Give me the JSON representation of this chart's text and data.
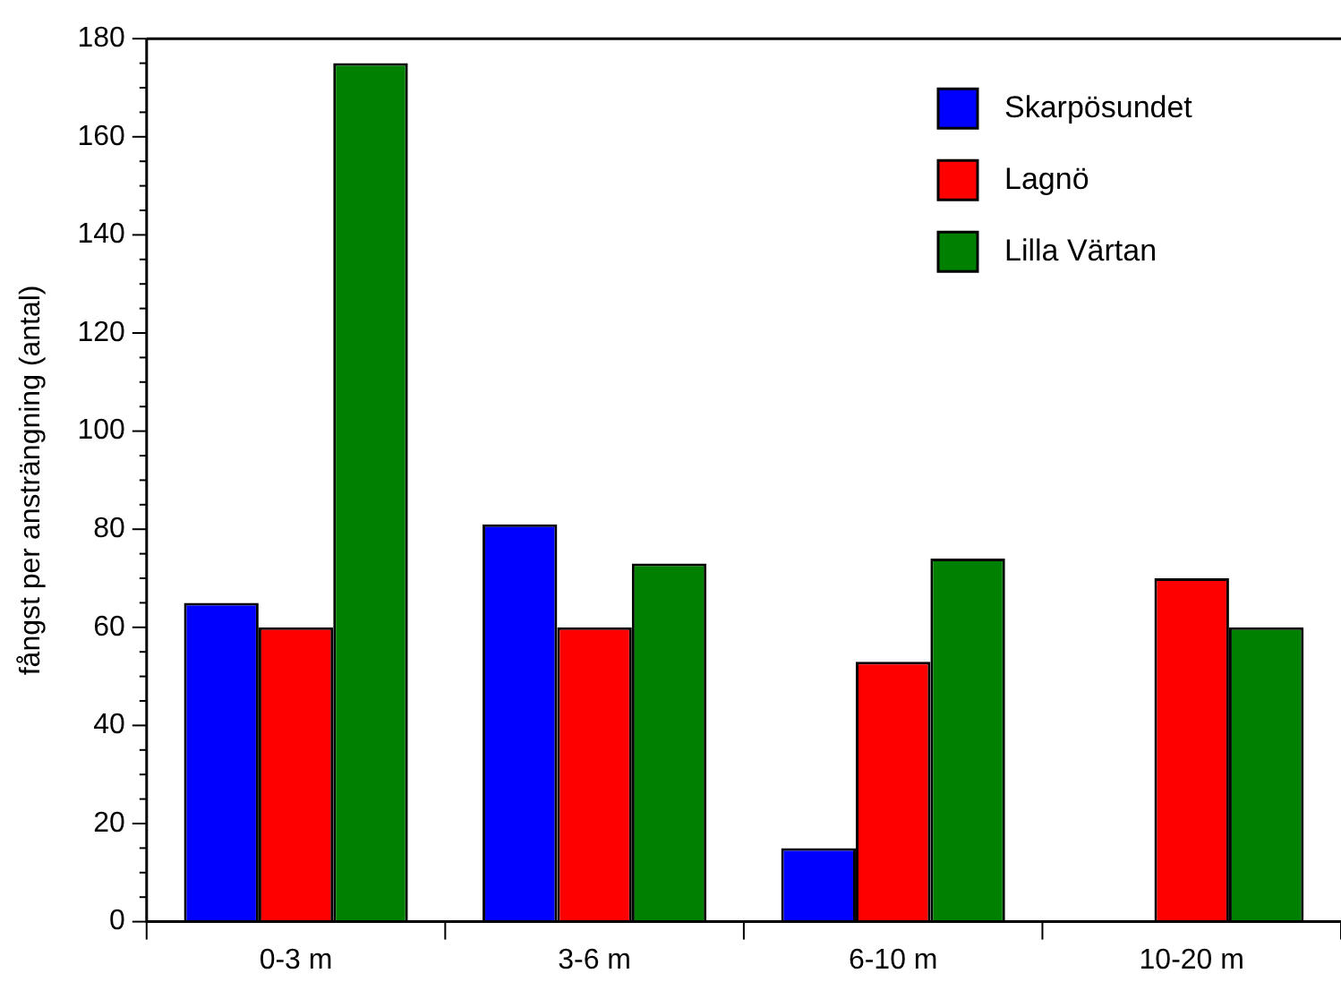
{
  "chart_data": {
    "type": "bar",
    "ylabel": "fångst per ansträngning (antal)",
    "categories": [
      "0-3 m",
      "3-6 m",
      "6-10 m",
      "10-20 m"
    ],
    "series": [
      {
        "name": "Skarpösundet",
        "color": "#0000ff",
        "values": [
          65,
          81,
          15,
          0
        ]
      },
      {
        "name": "Lagnö",
        "color": "#ff0000",
        "values": [
          60,
          60,
          53,
          70
        ]
      },
      {
        "name": "Lilla Värtan",
        "color": "#008000",
        "values": [
          175,
          73,
          74,
          60
        ]
      }
    ],
    "ylim": [
      0,
      180
    ],
    "yticks": [
      0,
      {
        "value": 5,
        "label": null
      },
      {
        "value": 10,
        "label": null
      },
      {
        "value": 15,
        "label": null
      },
      20,
      {
        "value": 25,
        "label": null
      },
      {
        "value": 30,
        "label": null
      },
      {
        "value": 35,
        "label": null
      },
      40,
      {
        "value": 45,
        "label": null
      },
      {
        "value": 50,
        "label": null
      },
      {
        "value": 55,
        "label": null
      },
      60,
      {
        "value": 65,
        "label": null
      },
      {
        "value": 70,
        "label": null
      },
      {
        "value": 75,
        "label": null
      },
      80,
      {
        "value": 85,
        "label": null
      },
      {
        "value": 90,
        "label": null
      },
      {
        "value": 95,
        "label": null
      },
      100,
      {
        "value": 105,
        "label": null
      },
      {
        "value": 110,
        "label": null
      },
      {
        "value": 115,
        "label": null
      },
      120,
      {
        "value": 125,
        "label": null
      },
      {
        "value": 130,
        "label": null
      },
      {
        "value": 135,
        "label": null
      },
      140,
      {
        "value": 145,
        "label": null
      },
      {
        "value": 150,
        "label": null
      },
      {
        "value": 155,
        "label": null
      },
      160,
      {
        "value": 165,
        "label": null
      },
      {
        "value": 170,
        "label": null
      },
      {
        "value": 175,
        "label": null
      },
      180
    ],
    "grid": false,
    "legend": "top right"
  }
}
